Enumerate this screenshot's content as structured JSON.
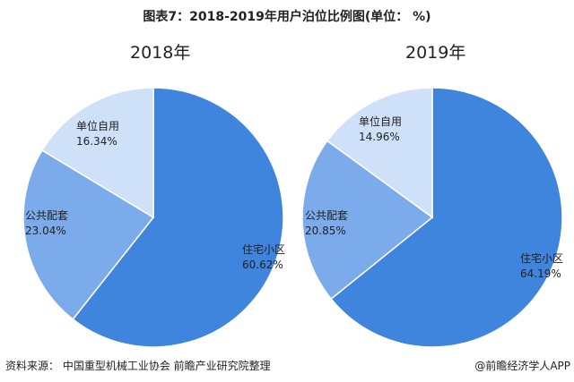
{
  "title": "图表7：2018-2019年用户泊位比例图(单位： %)",
  "source": "资料来源： 中国重型机械工业协会 前瞻产业研究院整理",
  "brand": "@前瞻经济学人APP",
  "chart_data": [
    {
      "type": "pie",
      "title": "2018年",
      "categories": [
        "住宅小区",
        "公共配套",
        "单位自用"
      ],
      "values": [
        60.62,
        23.04,
        16.34
      ],
      "value_labels": [
        "60.62%",
        "23.04%",
        "16.34%"
      ],
      "colors": [
        "#3F84DD",
        "#7BABEA",
        "#CFE1F8"
      ]
    },
    {
      "type": "pie",
      "title": "2019年",
      "categories": [
        "住宅小区",
        "公共配套",
        "单位自用"
      ],
      "values": [
        64.19,
        20.85,
        14.96
      ],
      "value_labels": [
        "64.19%",
        "20.85%",
        "14.96%"
      ],
      "colors": [
        "#3F84DD",
        "#7BABEA",
        "#CFE1F8"
      ]
    }
  ]
}
